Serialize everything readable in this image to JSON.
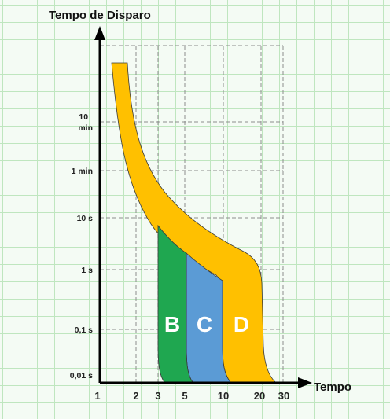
{
  "diagram": {
    "y_title": "Tempo de Disparo",
    "x_title": "Tempo",
    "y_ticks": [
      {
        "lines": [
          "10",
          "min"
        ]
      },
      {
        "lines": [
          "1 min"
        ]
      },
      {
        "lines": [
          "10 s"
        ]
      },
      {
        "lines": [
          "1 s"
        ]
      },
      {
        "lines": [
          "0,1 s"
        ]
      },
      {
        "lines": [
          "0,01 s"
        ]
      }
    ],
    "x_ticks": [
      "1",
      "2",
      "3",
      "5",
      "10",
      "20",
      "30"
    ],
    "bands": [
      {
        "label": "B",
        "color": "#1fa750"
      },
      {
        "label": "C",
        "color": "#5b9bd5"
      },
      {
        "label": "D",
        "color": "#ffc000"
      }
    ],
    "colors": {
      "axis": "#000000",
      "grid": "#8c8c8c",
      "band_label": "#ffffff",
      "band_outline": "#3a3a3a",
      "background": "#f4fbf4",
      "paper_grid": "#bfe6bf"
    }
  }
}
